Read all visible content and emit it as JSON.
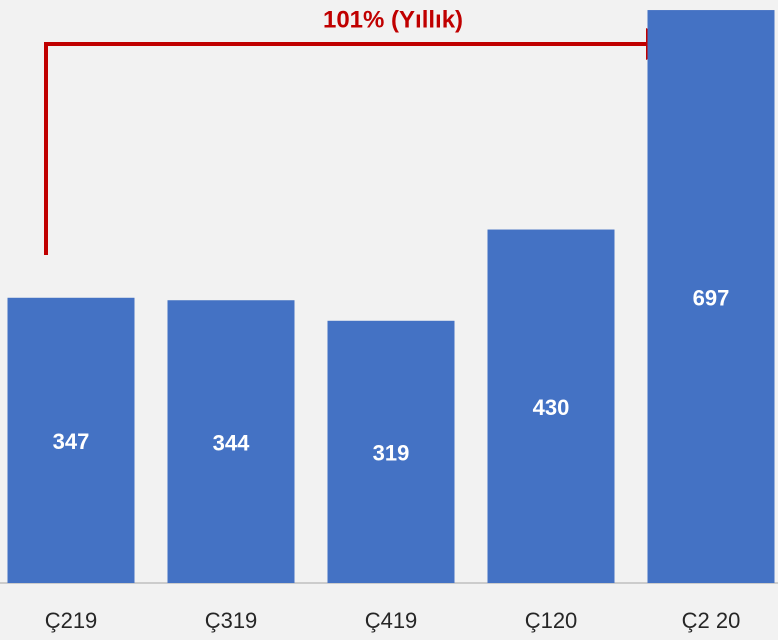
{
  "chart_data": {
    "type": "bar",
    "annotation": "101% (Yıllık)",
    "categories": [
      "Ç219",
      "Ç319",
      "Ç419",
      "Ç120",
      "Ç2 20"
    ],
    "values": [
      347,
      344,
      319,
      430,
      697
    ],
    "color": "#4472c4"
  }
}
